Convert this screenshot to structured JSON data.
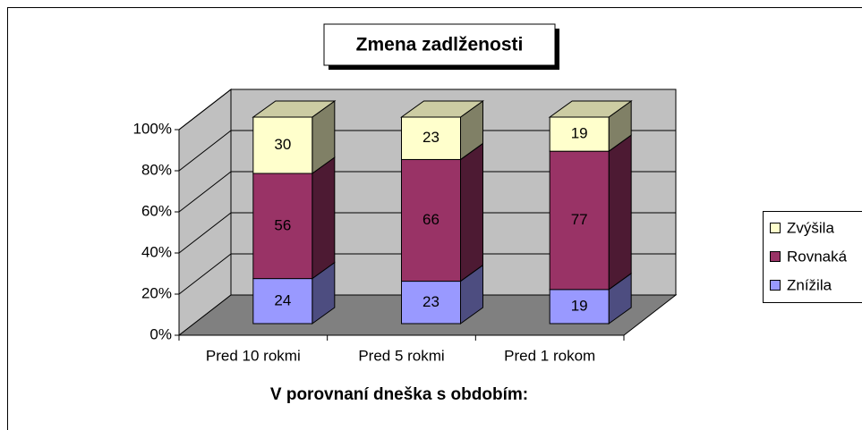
{
  "chart_data": {
    "type": "bar",
    "stacking": "percent",
    "title": "Zmena zadlženosti",
    "x_label": "V porovnaní dneška s obdobím:",
    "categories": [
      "Pred 10 rokmi",
      "Pred 5 rokmi",
      "Pred 1 rokom"
    ],
    "series": [
      {
        "name": "Znížila",
        "color": "#9999ff",
        "values": [
          24,
          23,
          19
        ]
      },
      {
        "name": "Rovnaká",
        "color": "#993366",
        "values": [
          56,
          66,
          77
        ]
      },
      {
        "name": "Zvýšila",
        "color": "#ffffcc",
        "values": [
          30,
          23,
          19
        ]
      }
    ],
    "ylim": [
      0,
      100
    ],
    "yticks": [
      {
        "value": 0,
        "label": "0%"
      },
      {
        "value": 20,
        "label": "20%"
      },
      {
        "value": 40,
        "label": "40%"
      },
      {
        "value": 60,
        "label": "60%"
      },
      {
        "value": 80,
        "label": "80%"
      },
      {
        "value": 100,
        "label": "100%"
      }
    ],
    "grid": true,
    "legend": "right"
  }
}
